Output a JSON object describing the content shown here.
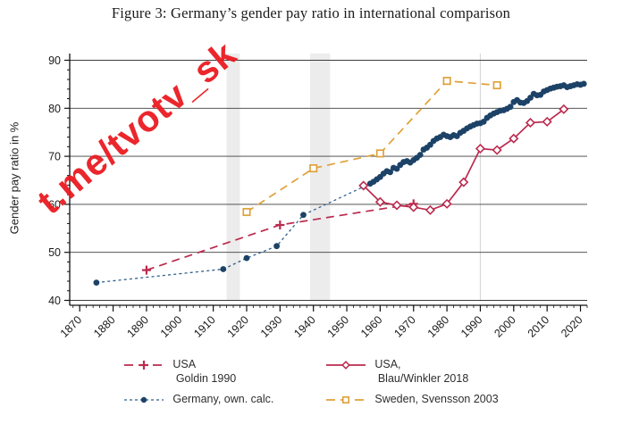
{
  "figure": {
    "title": "Figure 3: Germany’s gender pay ratio in international comparison"
  },
  "watermark": {
    "text": "t.me/tvotv_sk",
    "color": "#ea1b21"
  },
  "chart_data": {
    "type": "line",
    "title": "Figure 3: Germany’s gender pay ratio in international comparison",
    "xlabel": "",
    "ylabel": "Gender pay ratio in %",
    "xlim": [
      1867,
      2022
    ],
    "ylim": [
      40,
      90
    ],
    "x_ticks": [
      1870,
      1880,
      1890,
      1900,
      1910,
      1920,
      1930,
      1940,
      1950,
      1960,
      1970,
      1980,
      1990,
      2000,
      2010,
      2020
    ],
    "y_ticks": [
      40,
      50,
      60,
      70,
      80,
      90
    ],
    "minor_tick_step_x": 2,
    "minor_tick_step_y": 2,
    "grid": "horizontal-major",
    "legend_position": "bottom",
    "shaded_bands": [
      {
        "label": "WWI",
        "from": 1914,
        "to": 1918,
        "color": "#ececec"
      },
      {
        "label": "WWII",
        "from": 1939,
        "to": 1945,
        "color": "#ececec"
      }
    ],
    "reference_line_x": 1990,
    "reference_line_color": "#d8d8d8",
    "series": [
      {
        "name": "usa-goldin",
        "legend_label": "USA\n Goldin 1990",
        "color": "#bb2a4e",
        "line_style": "dashed",
        "marker": "plus",
        "points": [
          [
            1890,
            46.3
          ],
          [
            1930,
            55.7
          ],
          [
            1970,
            60.1
          ]
        ]
      },
      {
        "name": "sweden-svensson",
        "legend_label": "Sweden, Svensson 2003",
        "color": "#dfa13a",
        "line_style": "dashed",
        "marker": "square",
        "points": [
          [
            1920,
            58.4
          ],
          [
            1940,
            67.5
          ],
          [
            1960,
            70.6
          ],
          [
            1980,
            85.7
          ],
          [
            1995,
            84.8
          ]
        ]
      },
      {
        "name": "germany-own-calc",
        "legend_label": "Germany, own. calc.",
        "color": "#2e5e8e",
        "marker_color": "#1d4267",
        "line_style": "dotted",
        "marker": "circle",
        "points": [
          [
            1875,
            43.7
          ],
          [
            1913,
            46.5
          ],
          [
            1920,
            48.8
          ],
          [
            1929,
            51.3
          ],
          [
            1937,
            57.8
          ],
          [
            1957,
            64.3
          ],
          [
            1958,
            64.7
          ],
          [
            1959,
            65.2
          ],
          [
            1960,
            65.7
          ],
          [
            1961,
            66.4
          ],
          [
            1962,
            66.9
          ],
          [
            1963,
            66.7
          ],
          [
            1964,
            67.6
          ],
          [
            1965,
            67.4
          ],
          [
            1966,
            68.2
          ],
          [
            1967,
            68.8
          ],
          [
            1968,
            69.0
          ],
          [
            1969,
            68.7
          ],
          [
            1970,
            69.2
          ],
          [
            1971,
            69.7
          ],
          [
            1972,
            70.3
          ],
          [
            1973,
            71.4
          ],
          [
            1974,
            71.8
          ],
          [
            1975,
            72.4
          ],
          [
            1976,
            73.2
          ],
          [
            1977,
            73.7
          ],
          [
            1978,
            74.0
          ],
          [
            1979,
            74.5
          ],
          [
            1980,
            74.2
          ],
          [
            1981,
            74.0
          ],
          [
            1982,
            74.4
          ],
          [
            1983,
            74.2
          ],
          [
            1984,
            74.9
          ],
          [
            1985,
            75.3
          ],
          [
            1986,
            75.8
          ],
          [
            1987,
            76.2
          ],
          [
            1988,
            76.5
          ],
          [
            1989,
            76.8
          ],
          [
            1990,
            76.9
          ],
          [
            1991,
            77.2
          ],
          [
            1992,
            78.0
          ],
          [
            1993,
            78.5
          ],
          [
            1994,
            78.9
          ],
          [
            1995,
            79.2
          ],
          [
            1996,
            79.5
          ],
          [
            1997,
            79.6
          ],
          [
            1998,
            79.9
          ],
          [
            1999,
            80.3
          ],
          [
            2000,
            81.3
          ],
          [
            2001,
            81.7
          ],
          [
            2002,
            81.2
          ],
          [
            2003,
            81.1
          ],
          [
            2004,
            81.5
          ],
          [
            2005,
            82.2
          ],
          [
            2006,
            83.0
          ],
          [
            2007,
            82.7
          ],
          [
            2008,
            82.8
          ],
          [
            2009,
            83.5
          ],
          [
            2010,
            83.8
          ],
          [
            2011,
            84.1
          ],
          [
            2012,
            84.3
          ],
          [
            2013,
            84.5
          ],
          [
            2014,
            84.6
          ],
          [
            2015,
            84.8
          ],
          [
            2016,
            84.4
          ],
          [
            2017,
            84.6
          ],
          [
            2018,
            84.8
          ],
          [
            2019,
            85.0
          ],
          [
            2020,
            84.9
          ],
          [
            2021,
            85.1
          ]
        ]
      },
      {
        "name": "usa-blau-winkler",
        "legend_label": "USA,\n Blau/Winkler 2018",
        "color": "#bb2a4e",
        "line_style": "solid",
        "marker": "diamond",
        "points": [
          [
            1955,
            63.9
          ],
          [
            1960,
            60.5
          ],
          [
            1965,
            59.8
          ],
          [
            1970,
            59.4
          ],
          [
            1975,
            58.8
          ],
          [
            1980,
            60.1
          ],
          [
            1985,
            64.6
          ],
          [
            1990,
            71.6
          ],
          [
            1995,
            71.3
          ],
          [
            2000,
            73.7
          ],
          [
            2005,
            77.0
          ],
          [
            2010,
            77.2
          ],
          [
            2015,
            79.8
          ]
        ]
      }
    ],
    "legend_order": [
      "usa-goldin",
      "usa-blau-winkler",
      "germany-own-calc",
      "sweden-svensson"
    ]
  }
}
